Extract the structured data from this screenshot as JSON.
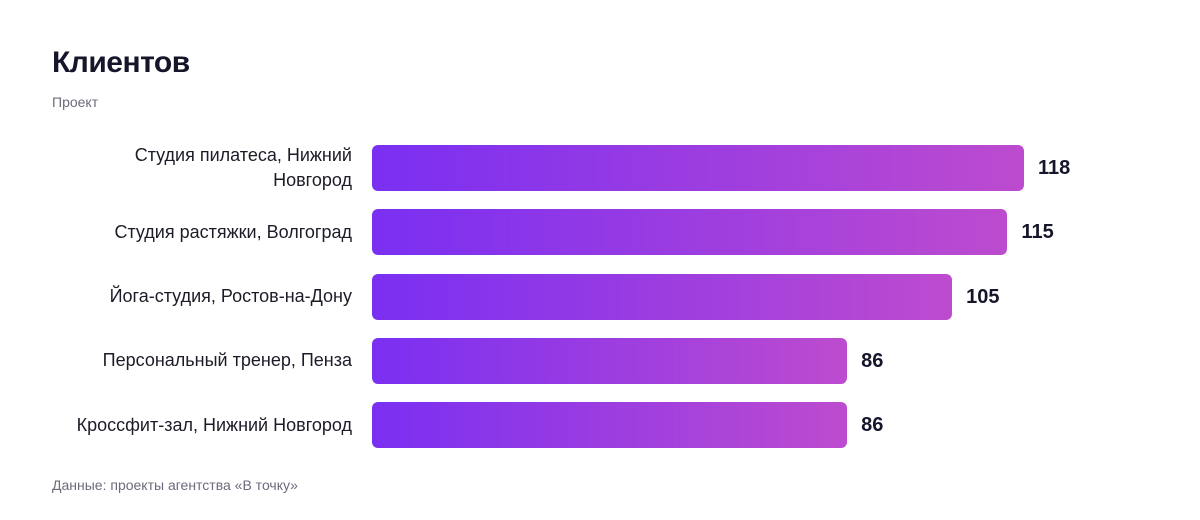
{
  "chart_data": {
    "type": "bar",
    "orientation": "horizontal",
    "title": "Клиентов",
    "subtitle": "Проект",
    "categories": [
      "Студия пилатеса, Нижний Новгород",
      "Студия растяжки, Волгоград",
      "Йога-студия, Ростов-на-Дону",
      "Персональный тренер, Пенза",
      "Кроссфит-зал, Нижний Новгород"
    ],
    "values": [
      118,
      115,
      105,
      86,
      86
    ],
    "gradient": [
      "#7a2ff2",
      "#bd4bcf"
    ],
    "source": "Данные: проекты агентства «В точку»"
  }
}
